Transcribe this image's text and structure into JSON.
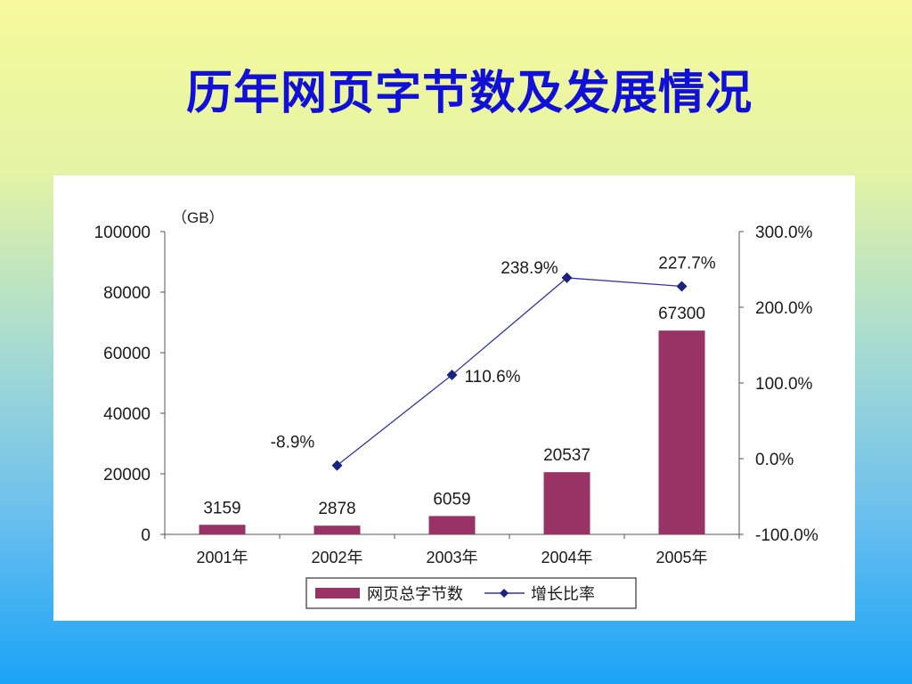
{
  "slide": {
    "title": "历年网页字节数及发展情况"
  },
  "colors": {
    "bar": "#993366",
    "line": "#3333aa",
    "marker": "#1a237e",
    "title": "#1010d8"
  },
  "chart_data": {
    "type": "bar",
    "categories": [
      "2001年",
      "2002年",
      "2003年",
      "2004年",
      "2005年"
    ],
    "series": [
      {
        "name": "网页总字节数",
        "type": "bar",
        "axis": "left",
        "values": [
          3159,
          2878,
          6059,
          20537,
          67300
        ]
      },
      {
        "name": "增长比率",
        "type": "line",
        "axis": "right",
        "values": [
          null,
          -8.9,
          110.6,
          238.9,
          227.7
        ]
      }
    ],
    "data_labels": {
      "bars": [
        "3159",
        "2878",
        "6059",
        "20537",
        "67300"
      ],
      "line": [
        "",
        "-8.9%",
        "110.6%",
        "238.9%",
        "227.7%"
      ]
    },
    "y_left": {
      "unit": "（GB）",
      "ylim": [
        0,
        100000
      ],
      "ticks": [
        0,
        20000,
        40000,
        60000,
        80000,
        100000
      ],
      "tick_labels": [
        "0",
        "20000",
        "40000",
        "60000",
        "80000",
        "100000"
      ]
    },
    "y_right": {
      "ylim": [
        -100,
        300
      ],
      "ticks": [
        -100,
        0,
        100,
        200,
        300
      ],
      "tick_labels": [
        "-100.0%",
        "0.0%",
        "100.0%",
        "200.0%",
        "300.0%"
      ]
    },
    "legend": {
      "position": "bottom",
      "entries": [
        "网页总字节数",
        "增长比率"
      ]
    },
    "grid": false
  }
}
